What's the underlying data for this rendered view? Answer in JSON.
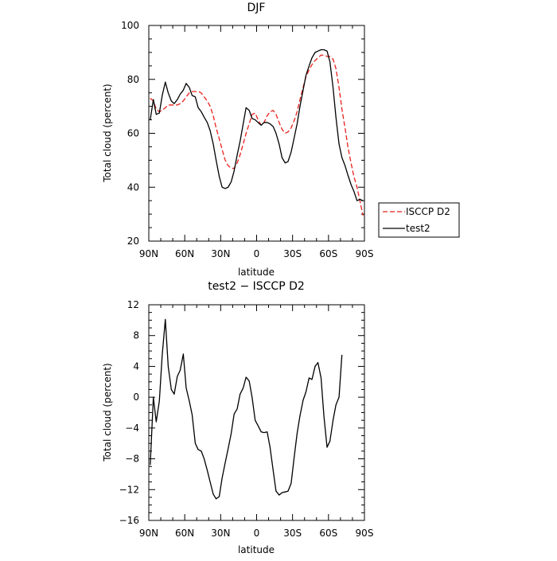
{
  "charts": [
    {
      "type": "line",
      "title": "DJF",
      "xlabel": "latitude",
      "ylabel": "Total cloud (percent)",
      "xlim": [
        90,
        -90
      ],
      "ylim": [
        20,
        100
      ],
      "x_ticks": [
        {
          "value": 90,
          "label": "90N"
        },
        {
          "value": 60,
          "label": "60N"
        },
        {
          "value": 30,
          "label": "30N"
        },
        {
          "value": 0,
          "label": "0"
        },
        {
          "value": -30,
          "label": "30S"
        },
        {
          "value": -60,
          "label": "60S"
        },
        {
          "value": -90,
          "label": "90S"
        }
      ],
      "y_ticks": [
        {
          "value": 20,
          "label": "20"
        },
        {
          "value": 40,
          "label": "40"
        },
        {
          "value": 60,
          "label": "60"
        },
        {
          "value": 80,
          "label": "80"
        },
        {
          "value": 100,
          "label": "100"
        }
      ],
      "legend_position": "outside-right-bottom",
      "series": [
        {
          "name": "ISCCP D2",
          "color": "#e8201c",
          "dash": "dashed",
          "points": [
            [
              88.8,
              73
            ],
            [
              86.2,
              72
            ],
            [
              83.8,
              69
            ],
            [
              81.2,
              68
            ],
            [
              78.8,
              68.5
            ],
            [
              76.2,
              69.5
            ],
            [
              73.8,
              70.5
            ],
            [
              71.2,
              70.5
            ],
            [
              68.8,
              70.5
            ],
            [
              66.2,
              70.5
            ],
            [
              63.8,
              71
            ],
            [
              61.2,
              72
            ],
            [
              58.8,
              73.5
            ],
            [
              56.2,
              75
            ],
            [
              53.8,
              75.5
            ],
            [
              51.2,
              75.5
            ],
            [
              48.8,
              75.5
            ],
            [
              46.2,
              75
            ],
            [
              43.8,
              73.5
            ],
            [
              41.2,
              72
            ],
            [
              38.8,
              70
            ],
            [
              36.2,
              66.5
            ],
            [
              33.8,
              62
            ],
            [
              31.2,
              58
            ],
            [
              28.8,
              54
            ],
            [
              26.2,
              50
            ],
            [
              23.8,
              48
            ],
            [
              21.2,
              47
            ],
            [
              18.8,
              47
            ],
            [
              16.2,
              49
            ],
            [
              13.8,
              52
            ],
            [
              11.2,
              56
            ],
            [
              8.8,
              60
            ],
            [
              6.2,
              63.5
            ],
            [
              3.8,
              67
            ],
            [
              1.2,
              67.5
            ],
            [
              -1.2,
              65
            ],
            [
              -3.8,
              63
            ],
            [
              -6.2,
              64
            ],
            [
              -8.8,
              66.5
            ],
            [
              -11.2,
              68
            ],
            [
              -13.8,
              68.5
            ],
            [
              -16.2,
              67
            ],
            [
              -18.8,
              64
            ],
            [
              -21.2,
              61.5
            ],
            [
              -23.8,
              60
            ],
            [
              -26.2,
              60.5
            ],
            [
              -28.8,
              62
            ],
            [
              -31.2,
              64.5
            ],
            [
              -33.8,
              68
            ],
            [
              -36.2,
              72.5
            ],
            [
              -38.8,
              77
            ],
            [
              -41.2,
              81
            ],
            [
              -43.8,
              83.5
            ],
            [
              -46.2,
              85.5
            ],
            [
              -48.8,
              87
            ],
            [
              -51.2,
              88
            ],
            [
              -53.8,
              89
            ],
            [
              -56.2,
              89
            ],
            [
              -58.8,
              88.5
            ],
            [
              -61.2,
              88.5
            ],
            [
              -63.8,
              87.5
            ],
            [
              -66.2,
              84
            ],
            [
              -68.8,
              77
            ],
            [
              -71.2,
              69
            ],
            [
              -73.8,
              62
            ],
            [
              -76.2,
              55
            ],
            [
              -78.8,
              49
            ],
            [
              -81.2,
              44
            ],
            [
              -83.8,
              40
            ],
            [
              -86.2,
              35
            ],
            [
              -88.8,
              29.5
            ]
          ]
        },
        {
          "name": "test2",
          "color": "#000000",
          "dash": "solid",
          "points": [
            [
              88.8,
              65
            ],
            [
              86.2,
              72.5
            ],
            [
              83.8,
              67
            ],
            [
              81.2,
              67.5
            ],
            [
              78.8,
              74
            ],
            [
              76.2,
              79
            ],
            [
              73.8,
              75
            ],
            [
              71.2,
              72
            ],
            [
              68.8,
              71
            ],
            [
              66.2,
              72.5
            ],
            [
              63.8,
              74.5
            ],
            [
              61.2,
              76
            ],
            [
              58.8,
              78.5
            ],
            [
              56.2,
              77
            ],
            [
              53.8,
              74
            ],
            [
              51.2,
              73.5
            ],
            [
              48.8,
              69.5
            ],
            [
              46.2,
              68
            ],
            [
              43.8,
              66
            ],
            [
              41.2,
              64
            ],
            [
              38.8,
              61
            ],
            [
              36.2,
              56
            ],
            [
              33.8,
              50
            ],
            [
              31.2,
              44
            ],
            [
              28.8,
              40
            ],
            [
              26.2,
              39.5
            ],
            [
              23.8,
              40
            ],
            [
              21.2,
              42
            ],
            [
              18.8,
              46
            ],
            [
              16.2,
              52
            ],
            [
              13.8,
              57
            ],
            [
              11.2,
              63.5
            ],
            [
              8.8,
              69.5
            ],
            [
              6.2,
              68.5
            ],
            [
              3.8,
              65.5
            ],
            [
              1.2,
              65
            ],
            [
              -1.2,
              64
            ],
            [
              -3.8,
              63
            ],
            [
              -6.2,
              64
            ],
            [
              -8.8,
              64
            ],
            [
              -11.2,
              63.5
            ],
            [
              -13.8,
              62.5
            ],
            [
              -16.2,
              60
            ],
            [
              -18.8,
              56
            ],
            [
              -21.2,
              51
            ],
            [
              -23.8,
              49
            ],
            [
              -26.2,
              49.5
            ],
            [
              -28.8,
              53
            ],
            [
              -31.2,
              58
            ],
            [
              -33.8,
              63.5
            ],
            [
              -36.2,
              70
            ],
            [
              -38.8,
              76
            ],
            [
              -41.2,
              81.5
            ],
            [
              -43.8,
              85
            ],
            [
              -46.2,
              88
            ],
            [
              -48.8,
              90
            ],
            [
              -51.2,
              90.5
            ],
            [
              -53.8,
              91
            ],
            [
              -56.2,
              91
            ],
            [
              -58.8,
              90.5
            ],
            [
              -61.2,
              86.5
            ],
            [
              -63.8,
              77
            ],
            [
              -66.2,
              66
            ],
            [
              -68.8,
              56
            ],
            [
              -71.2,
              51
            ],
            [
              -73.8,
              48
            ],
            [
              -76.2,
              44.5
            ],
            [
              -78.8,
              41
            ],
            [
              -81.2,
              38.5
            ],
            [
              -83.8,
              35
            ],
            [
              -86.2,
              35.5
            ],
            [
              -88.8,
              35
            ]
          ]
        }
      ]
    },
    {
      "type": "line",
      "title": "test2 − ISCCP D2",
      "xlabel": "latitude",
      "ylabel": "Total cloud (percent)",
      "xlim": [
        90,
        -90
      ],
      "ylim": [
        -16,
        12
      ],
      "x_ticks": [
        {
          "value": 90,
          "label": "90N"
        },
        {
          "value": 60,
          "label": "60N"
        },
        {
          "value": 30,
          "label": "30N"
        },
        {
          "value": 0,
          "label": "0"
        },
        {
          "value": -30,
          "label": "30S"
        },
        {
          "value": -60,
          "label": "60S"
        },
        {
          "value": -90,
          "label": "90S"
        }
      ],
      "y_ticks": [
        {
          "value": -16,
          "label": "−16"
        },
        {
          "value": -12,
          "label": "−12"
        },
        {
          "value": -8,
          "label": "−8"
        },
        {
          "value": -4,
          "label": "−4"
        },
        {
          "value": 0,
          "label": "0"
        },
        {
          "value": 4,
          "label": "4"
        },
        {
          "value": 8,
          "label": "8"
        },
        {
          "value": 12,
          "label": "12"
        }
      ],
      "series": [
        {
          "color": "#000000",
          "dash": "solid",
          "points": [
            [
              88.8,
              -8.8
            ],
            [
              86.2,
              0
            ],
            [
              83.8,
              -3.2
            ],
            [
              81.2,
              -0.5
            ],
            [
              78.8,
              5.5
            ],
            [
              76.2,
              10.1
            ],
            [
              73.8,
              4
            ],
            [
              71.2,
              1
            ],
            [
              68.8,
              0.4
            ],
            [
              66.2,
              2.7
            ],
            [
              63.8,
              3.5
            ],
            [
              61.2,
              5.6
            ],
            [
              58.8,
              1.2
            ],
            [
              56.2,
              -0.5
            ],
            [
              53.8,
              -2.3
            ],
            [
              51.2,
              -6
            ],
            [
              48.8,
              -6.8
            ],
            [
              46.2,
              -7
            ],
            [
              43.8,
              -8
            ],
            [
              41.2,
              -9.5
            ],
            [
              38.8,
              -11
            ],
            [
              36.2,
              -12.6
            ],
            [
              33.8,
              -13.2
            ],
            [
              31.2,
              -12.9
            ],
            [
              28.8,
              -10.5
            ],
            [
              26.2,
              -8.5
            ],
            [
              23.8,
              -6.7
            ],
            [
              21.2,
              -4.7
            ],
            [
              18.8,
              -2.2
            ],
            [
              16.2,
              -1.5
            ],
            [
              13.8,
              0.4
            ],
            [
              11.2,
              1.2
            ],
            [
              8.8,
              2.6
            ],
            [
              6.2,
              2.1
            ],
            [
              3.8,
              0
            ],
            [
              1.2,
              -3
            ],
            [
              -1.2,
              -3.7
            ],
            [
              -3.8,
              -4.5
            ],
            [
              -6.2,
              -4.6
            ],
            [
              -8.8,
              -4.5
            ],
            [
              -11.2,
              -6.5
            ],
            [
              -13.8,
              -9.5
            ],
            [
              -16.2,
              -12.2
            ],
            [
              -18.8,
              -12.7
            ],
            [
              -21.2,
              -12.4
            ],
            [
              -23.8,
              -12.3
            ],
            [
              -26.2,
              -12.2
            ],
            [
              -28.8,
              -11.2
            ],
            [
              -31.2,
              -8
            ],
            [
              -33.8,
              -4.7
            ],
            [
              -36.2,
              -2.4
            ],
            [
              -38.8,
              -0.4
            ],
            [
              -41.2,
              0.7
            ],
            [
              -43.8,
              2.5
            ],
            [
              -46.2,
              2.3
            ],
            [
              -48.8,
              4
            ],
            [
              -51.2,
              4.5
            ],
            [
              -53.8,
              2.5
            ],
            [
              -56.2,
              -2.5
            ],
            [
              -58.8,
              -6.5
            ],
            [
              -61.2,
              -5.7
            ],
            [
              -63.8,
              -3
            ],
            [
              -66.2,
              -1
            ],
            [
              -68.8,
              0
            ],
            [
              -71.2,
              5.5
            ]
          ]
        }
      ]
    }
  ]
}
